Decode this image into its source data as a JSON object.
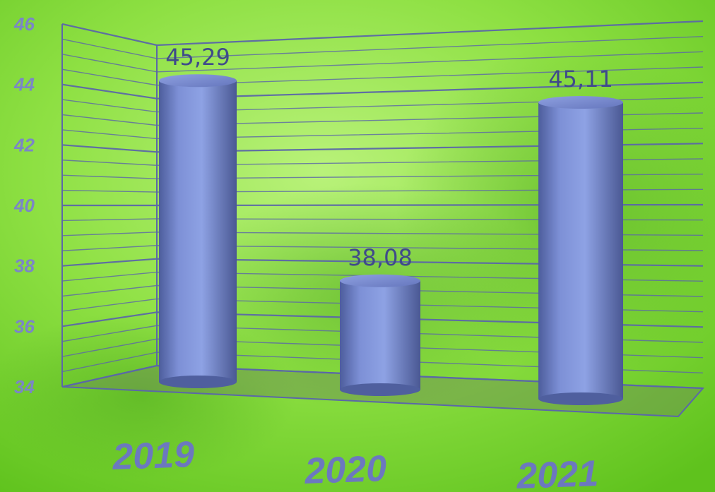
{
  "chart_data": {
    "type": "bar",
    "style": "3d-cylinder",
    "categories": [
      "2019",
      "2020",
      "2021"
    ],
    "values": [
      45.29,
      38.08,
      45.11
    ],
    "data_labels": [
      "45,29",
      "38,08",
      "45,11"
    ],
    "yticks": [
      34,
      36,
      38,
      40,
      42,
      44,
      46
    ],
    "ylim": [
      34,
      46
    ],
    "minor_gridlines_per_major": 4,
    "grid": true,
    "legend": false,
    "colors": {
      "bar": "#7f93d8",
      "bar_dark": "#4f5f9e",
      "grid": "#5b67a8",
      "floor": "#6f8a5a",
      "tick_label": "#7b86c6",
      "category_label": "#6c78bf",
      "data_label": "#3f4a8a"
    }
  }
}
